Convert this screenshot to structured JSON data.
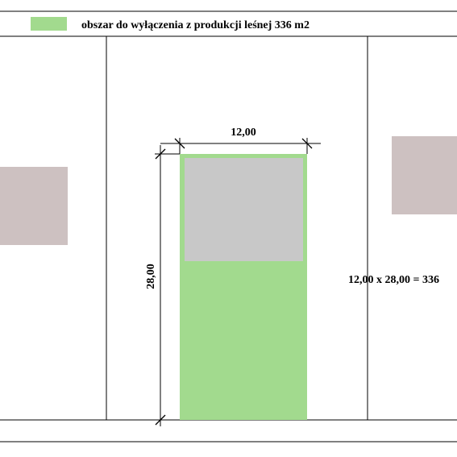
{
  "legend": {
    "label": "obszar do wyłączenia z produkcji leśnej 336 m2",
    "swatch_color": "#a2da8e"
  },
  "dimensions": {
    "width_label": "12,00",
    "height_label": "28,00"
  },
  "calculation": {
    "text": "12,00 x 28,00 = 336"
  },
  "colors": {
    "excluded_area": "#a2da8e",
    "building": "#c8c8c8",
    "neighbor_building": "#cdc1c1",
    "lines": "#000000"
  }
}
